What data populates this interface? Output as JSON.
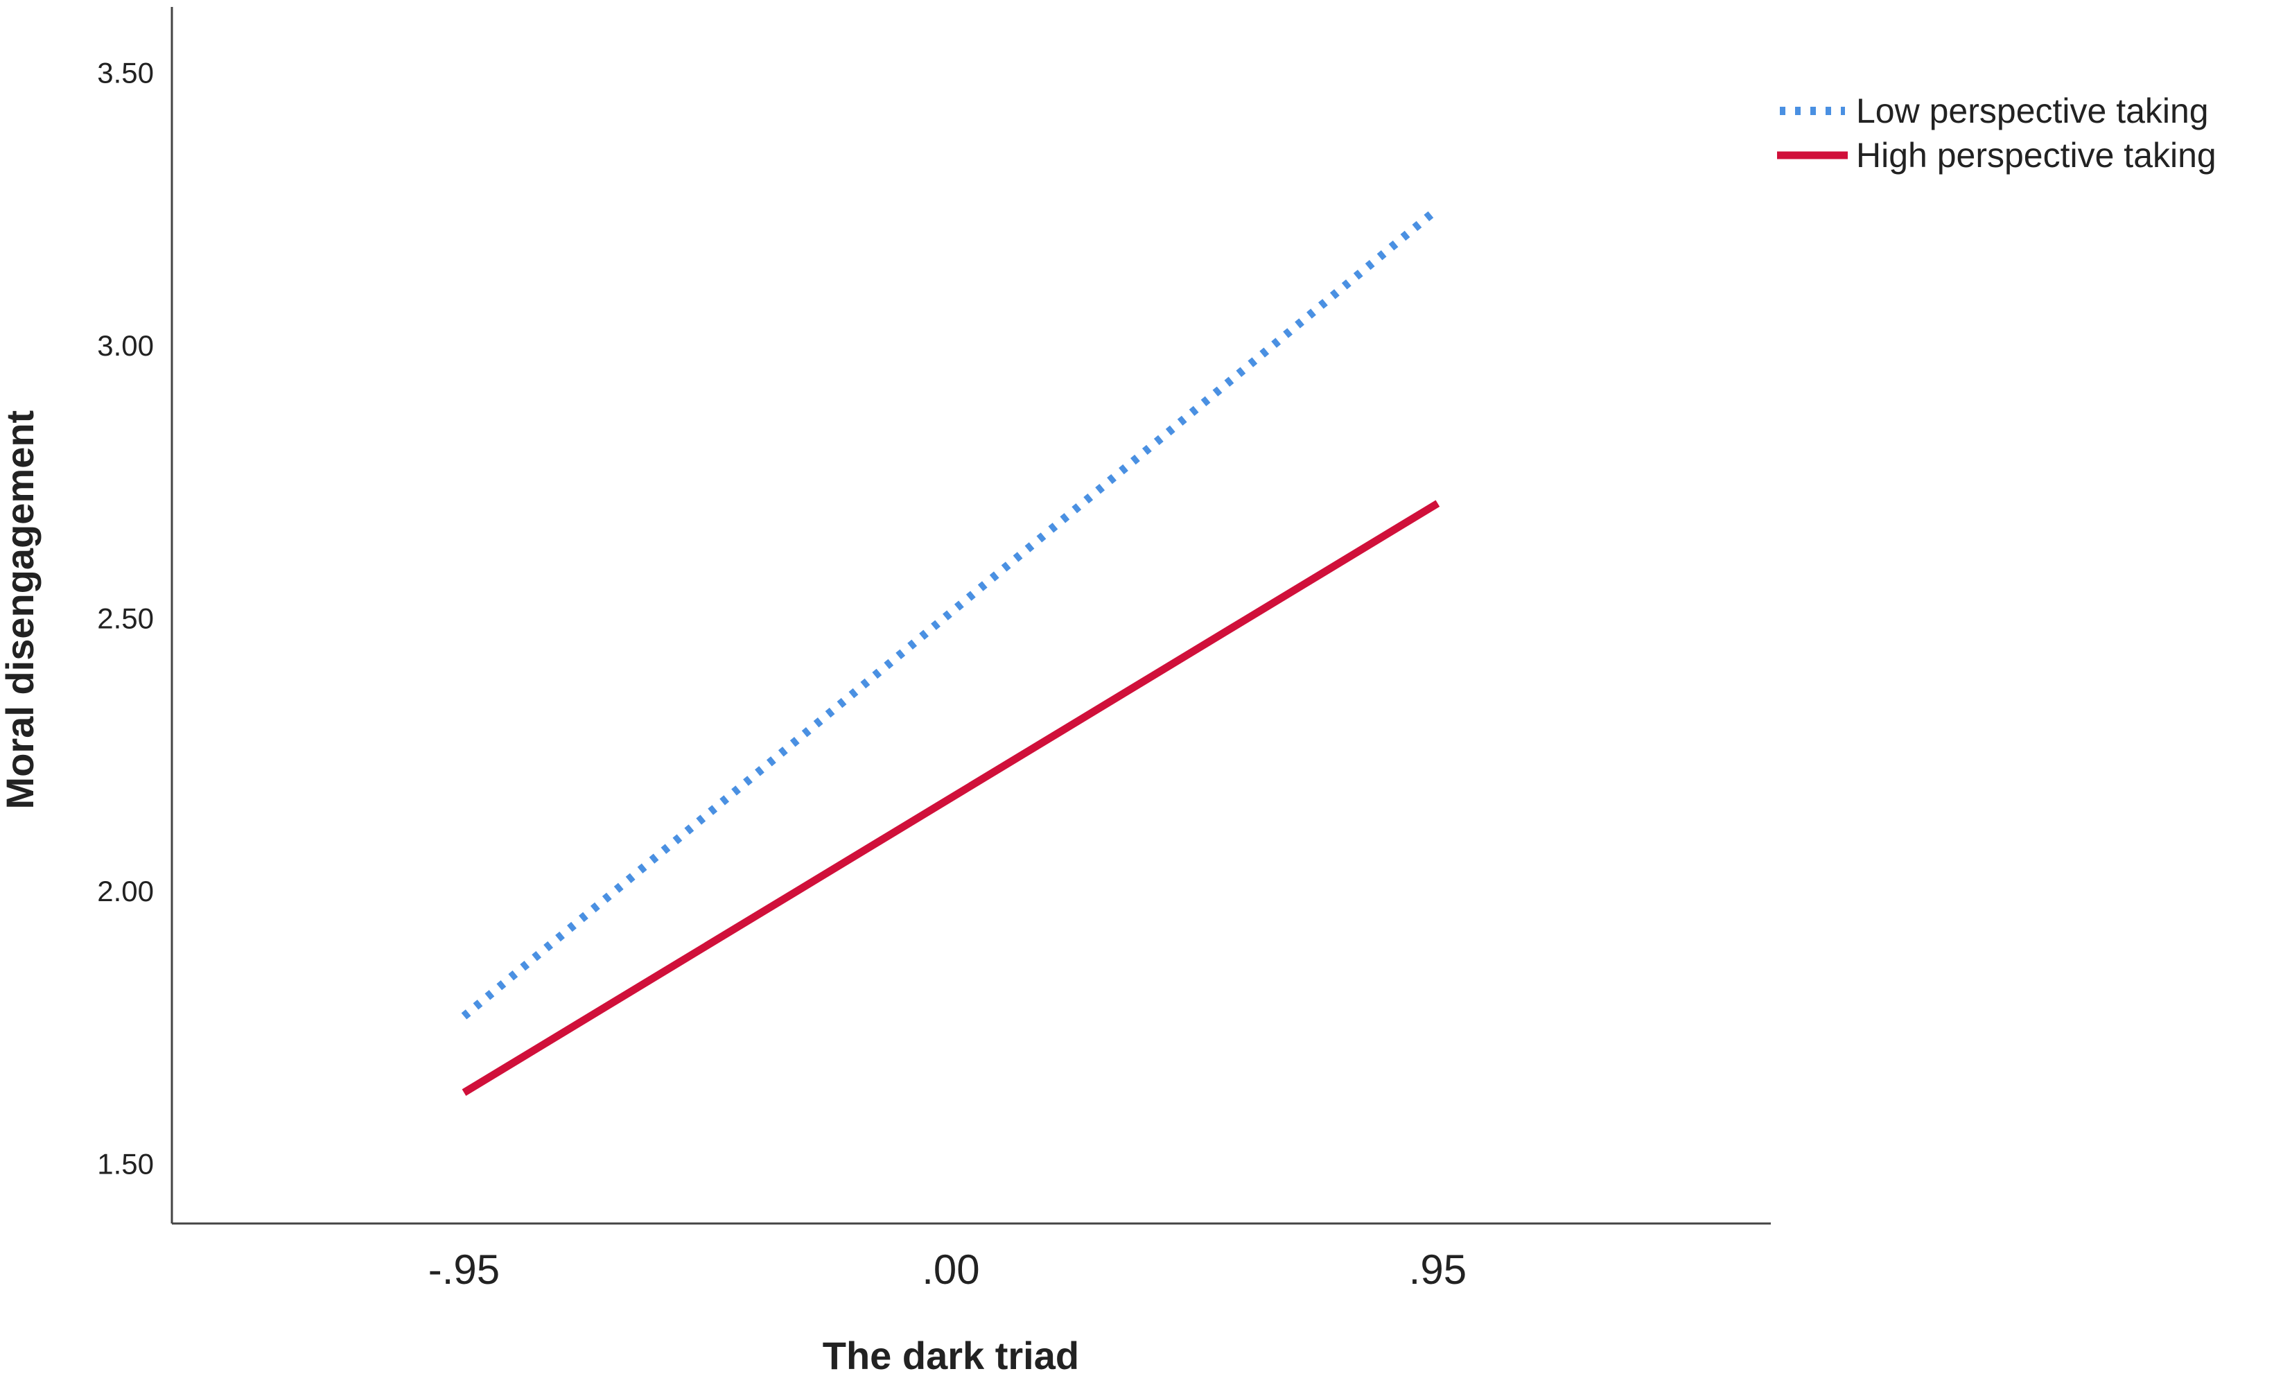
{
  "chart_data": {
    "type": "line",
    "xlabel": "The dark triad",
    "ylabel": "Moral disengagement",
    "x": [
      -0.95,
      0.95
    ],
    "x_tick_labels": [
      "-.95",
      ".00",
      ".95"
    ],
    "x_tick_values": [
      -0.95,
      0.0,
      0.95
    ],
    "xlim": [
      -1.52,
      1.6
    ],
    "ylim": [
      1.39,
      3.62
    ],
    "y_ticks": [
      1.5,
      2.0,
      2.5,
      3.0,
      3.5
    ],
    "y_tick_labels": [
      "1.50",
      "2.00",
      "2.50",
      "3.00",
      "3.50"
    ],
    "grid": false,
    "legend_position": "top-right",
    "series": [
      {
        "name": "Low perspective taking",
        "values": [
          1.77,
          3.25
        ],
        "color": "#4a90e2",
        "style": "dotted"
      },
      {
        "name": "High perspective taking",
        "values": [
          1.63,
          2.71
        ],
        "color": "#d0103a",
        "style": "solid"
      }
    ]
  }
}
